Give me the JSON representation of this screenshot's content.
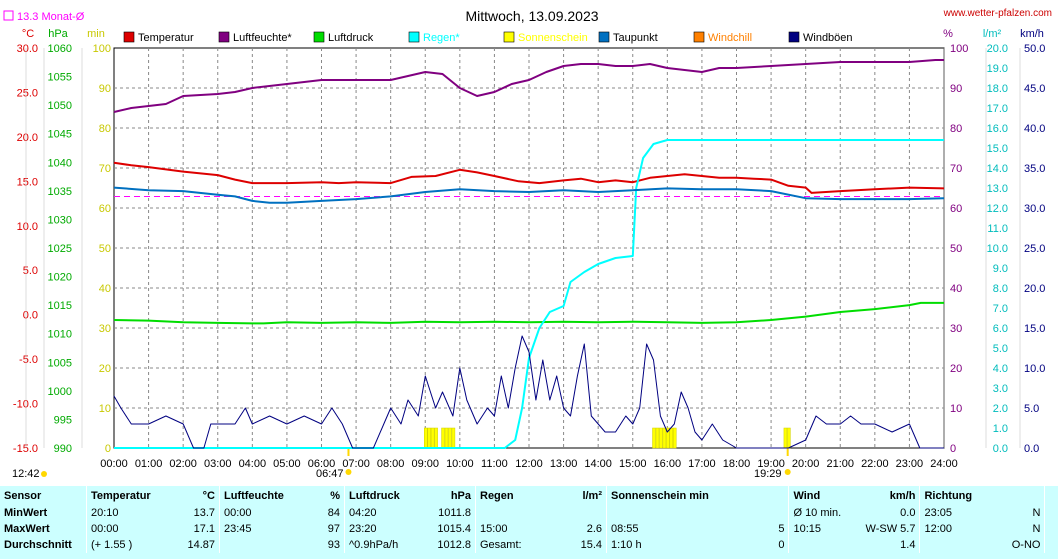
{
  "header": {
    "title": "Mittwoch, 13.09.2023",
    "site": "www.wetter-pfalzen.com",
    "monthly_avg_label": "13.3 Monat-Ø"
  },
  "units": {
    "left": [
      "°C",
      "hPa",
      "min"
    ],
    "right": [
      "%",
      "l/m²",
      "km/h"
    ]
  },
  "legend": [
    {
      "label": "Temperatur",
      "color": "#dd0000"
    },
    {
      "label": "Luftfeuchte*",
      "color": "#800080"
    },
    {
      "label": "Luftdruck",
      "color": "#00dd00"
    },
    {
      "label": "Regen*",
      "color": "#00ffff"
    },
    {
      "label": "Sonnenschein",
      "color": "#ffff00"
    },
    {
      "label": "Taupunkt",
      "color": "#0070c0"
    },
    {
      "label": "Windchill",
      "color": "#ff8000"
    },
    {
      "label": "Windböen",
      "color": "#000080"
    }
  ],
  "axes": {
    "temp_ticks": [
      "30.0",
      "25.0",
      "20.0",
      "15.0",
      "10.0",
      "5.0",
      "0.0",
      "-5.0",
      "-10.0",
      "-15.0"
    ],
    "pressure_ticks": [
      "1060",
      "1055",
      "1050",
      "1045",
      "1040",
      "1035",
      "1030",
      "1025",
      "1020",
      "1015",
      "1010",
      "1005",
      "1000",
      "995",
      "990"
    ],
    "minutes_ticks": [
      "100",
      "90",
      "80",
      "70",
      "60",
      "50",
      "40",
      "30",
      "20",
      "10",
      "0"
    ],
    "humidity_ticks": [
      "100",
      "90",
      "80",
      "70",
      "60",
      "50",
      "40",
      "30",
      "20",
      "10",
      "0"
    ],
    "rain_ticks": [
      "20.0",
      "19.0",
      "18.0",
      "17.0",
      "16.0",
      "15.0",
      "14.0",
      "13.0",
      "12.0",
      "11.0",
      "10.0",
      "9.0",
      "8.0",
      "7.0",
      "6.0",
      "5.0",
      "4.0",
      "3.0",
      "2.0",
      "1.0",
      "0.0"
    ],
    "wind_ticks": [
      "50.0",
      "45.0",
      "40.0",
      "35.0",
      "30.0",
      "25.0",
      "20.0",
      "15.0",
      "10.0",
      "5.0",
      "0.0"
    ],
    "x_ticks": [
      "00:00",
      "01:00",
      "02:00",
      "03:00",
      "04:00",
      "05:00",
      "06:00",
      "07:00",
      "08:00",
      "09:00",
      "10:00",
      "11:00",
      "12:00",
      "13:00",
      "14:00",
      "15:00",
      "16:00",
      "17:00",
      "18:00",
      "19:00",
      "20:00",
      "21:00",
      "22:00",
      "23:00",
      "24:00"
    ]
  },
  "sun_times": {
    "moonrise": "12:42",
    "sunrise": "06:47",
    "sunset": "19:29"
  },
  "chart_data": {
    "type": "line",
    "title": "Mittwoch, 13.09.2023",
    "x_unit": "hour of day",
    "xlim": [
      0,
      24
    ],
    "monthly_avg_temp": 13.3,
    "series": [
      {
        "name": "Temperatur",
        "unit": "°C",
        "axis": "temp",
        "ylim": [
          -15,
          30
        ],
        "color": "#dd0000",
        "points": [
          [
            0,
            17.1
          ],
          [
            0.5,
            16.8
          ],
          [
            1,
            16.6
          ],
          [
            2,
            16.1
          ],
          [
            3,
            15.7
          ],
          [
            3.5,
            15.2
          ],
          [
            4,
            14.8
          ],
          [
            5,
            14.8
          ],
          [
            6,
            14.9
          ],
          [
            6.5,
            14.8
          ],
          [
            7,
            14.9
          ],
          [
            8,
            14.8
          ],
          [
            8.6,
            15.5
          ],
          [
            9.3,
            15.6
          ],
          [
            10,
            16.3
          ],
          [
            10.5,
            16.0
          ],
          [
            11,
            15.6
          ],
          [
            11.7,
            15.0
          ],
          [
            12.3,
            14.8
          ],
          [
            13,
            15.1
          ],
          [
            13.5,
            15.3
          ],
          [
            14,
            14.9
          ],
          [
            14.5,
            15.1
          ],
          [
            15,
            14.9
          ],
          [
            15.5,
            15.4
          ],
          [
            16,
            15.6
          ],
          [
            16.5,
            15.8
          ],
          [
            17,
            15.6
          ],
          [
            17.5,
            15.4
          ],
          [
            18,
            15.4
          ],
          [
            18.5,
            15.3
          ],
          [
            19,
            15.2
          ],
          [
            19.5,
            14.5
          ],
          [
            20,
            14.3
          ],
          [
            20.17,
            13.7
          ],
          [
            21,
            13.9
          ],
          [
            22,
            14.1
          ],
          [
            23,
            14.3
          ],
          [
            24,
            14.2
          ]
        ]
      },
      {
        "name": "Luftfeuchte*",
        "unit": "%",
        "axis": "hum",
        "ylim": [
          0,
          100
        ],
        "color": "#800080",
        "points": [
          [
            0,
            84
          ],
          [
            0.5,
            85
          ],
          [
            1,
            85.5
          ],
          [
            1.5,
            86
          ],
          [
            2,
            88
          ],
          [
            3,
            88.5
          ],
          [
            3.5,
            89
          ],
          [
            4,
            90
          ],
          [
            5,
            91
          ],
          [
            6,
            92
          ],
          [
            7,
            92
          ],
          [
            8,
            92
          ],
          [
            8.5,
            93
          ],
          [
            9,
            94
          ],
          [
            9.5,
            93.5
          ],
          [
            10,
            90
          ],
          [
            10.5,
            88
          ],
          [
            11,
            89
          ],
          [
            11.5,
            91
          ],
          [
            12,
            92
          ],
          [
            12.5,
            94
          ],
          [
            13,
            95.5
          ],
          [
            13.5,
            96
          ],
          [
            14,
            96
          ],
          [
            14.5,
            95.5
          ],
          [
            15,
            95.5
          ],
          [
            15.5,
            96
          ],
          [
            16,
            95
          ],
          [
            16.5,
            94.5
          ],
          [
            17,
            94
          ],
          [
            17.5,
            95
          ],
          [
            18,
            95
          ],
          [
            19,
            95.5
          ],
          [
            20,
            96
          ],
          [
            21,
            96.5
          ],
          [
            22,
            96.5
          ],
          [
            23,
            96.5
          ],
          [
            23.75,
            97
          ],
          [
            24,
            97
          ]
        ]
      },
      {
        "name": "Luftdruck",
        "unit": "hPa",
        "axis": "pressure",
        "ylim": [
          990,
          1060
        ],
        "color": "#00dd00",
        "points": [
          [
            0,
            1012.4
          ],
          [
            1,
            1012.3
          ],
          [
            2,
            1012.0
          ],
          [
            3,
            1011.9
          ],
          [
            4,
            1011.8
          ],
          [
            4.33,
            1011.8
          ],
          [
            5,
            1012.0
          ],
          [
            6,
            1011.9
          ],
          [
            7,
            1012.0
          ],
          [
            8,
            1011.9
          ],
          [
            9,
            1012.1
          ],
          [
            10,
            1012.0
          ],
          [
            11,
            1012.1
          ],
          [
            12,
            1012.0
          ],
          [
            13,
            1012.1
          ],
          [
            14,
            1012.0
          ],
          [
            15,
            1012.1
          ],
          [
            16,
            1012.0
          ],
          [
            17,
            1011.9
          ],
          [
            18,
            1012.0
          ],
          [
            19,
            1012.4
          ],
          [
            20,
            1013.0
          ],
          [
            21,
            1013.8
          ],
          [
            22,
            1014.3
          ],
          [
            23,
            1015.0
          ],
          [
            23.33,
            1015.4
          ],
          [
            24,
            1015.4
          ]
        ]
      },
      {
        "name": "Regen*",
        "unit": "l/m²",
        "axis": "rain",
        "ylim": [
          0,
          20
        ],
        "color": "#00ffff",
        "points": [
          [
            0,
            0
          ],
          [
            11.3,
            0
          ],
          [
            11.6,
            0.4
          ],
          [
            11.8,
            2.0
          ],
          [
            12.0,
            4.5
          ],
          [
            12.3,
            6.0
          ],
          [
            12.6,
            6.8
          ],
          [
            13.0,
            7.1
          ],
          [
            13.2,
            8.3
          ],
          [
            13.6,
            8.8
          ],
          [
            14.0,
            9.2
          ],
          [
            14.5,
            9.5
          ],
          [
            15.0,
            9.6
          ],
          [
            15.1,
            13.0
          ],
          [
            15.3,
            14.5
          ],
          [
            15.6,
            15.2
          ],
          [
            16.0,
            15.4
          ],
          [
            17,
            15.4
          ],
          [
            20,
            15.4
          ],
          [
            24,
            15.4
          ]
        ]
      },
      {
        "name": "Taupunkt",
        "unit": "°C",
        "axis": "temp",
        "ylim": [
          -15,
          30
        ],
        "color": "#0070c0",
        "points": [
          [
            0,
            14.3
          ],
          [
            1,
            14.0
          ],
          [
            2,
            13.9
          ],
          [
            3,
            13.5
          ],
          [
            3.5,
            13.3
          ],
          [
            4,
            12.8
          ],
          [
            4.5,
            12.6
          ],
          [
            5,
            12.6
          ],
          [
            6,
            12.8
          ],
          [
            7,
            13.0
          ],
          [
            8,
            13.3
          ],
          [
            9,
            13.8
          ],
          [
            10,
            14.1
          ],
          [
            11,
            13.9
          ],
          [
            12,
            13.8
          ],
          [
            13,
            14.0
          ],
          [
            14,
            13.8
          ],
          [
            15,
            14.0
          ],
          [
            16,
            14.2
          ],
          [
            17,
            14.1
          ],
          [
            18,
            14.1
          ],
          [
            19,
            13.9
          ],
          [
            20,
            13.1
          ],
          [
            21,
            13.0
          ],
          [
            22,
            13.0
          ],
          [
            23,
            13.0
          ],
          [
            24,
            13.1
          ]
        ]
      },
      {
        "name": "Windböen",
        "unit": "km/h",
        "axis": "wind",
        "ylim": [
          0,
          50
        ],
        "color": "#000080",
        "points": [
          [
            0,
            6.5
          ],
          [
            0.2,
            5
          ],
          [
            0.5,
            3
          ],
          [
            1,
            3
          ],
          [
            1.5,
            4
          ],
          [
            2,
            3
          ],
          [
            2.3,
            0
          ],
          [
            2.6,
            0
          ],
          [
            2.8,
            3
          ],
          [
            3.5,
            3
          ],
          [
            3.8,
            5
          ],
          [
            4,
            3
          ],
          [
            4.5,
            4
          ],
          [
            5,
            3
          ],
          [
            5.5,
            4
          ],
          [
            6,
            3
          ],
          [
            6.3,
            5
          ],
          [
            6.6,
            3
          ],
          [
            6.9,
            0
          ],
          [
            7.5,
            0
          ],
          [
            7.8,
            3
          ],
          [
            8.0,
            5
          ],
          [
            8.3,
            3
          ],
          [
            8.5,
            6
          ],
          [
            8.8,
            4
          ],
          [
            9.0,
            9
          ],
          [
            9.3,
            5
          ],
          [
            9.5,
            7
          ],
          [
            9.8,
            4
          ],
          [
            10.0,
            10
          ],
          [
            10.2,
            6
          ],
          [
            10.5,
            3
          ],
          [
            10.8,
            5
          ],
          [
            11.0,
            4
          ],
          [
            11.2,
            9
          ],
          [
            11.4,
            5
          ],
          [
            11.6,
            10
          ],
          [
            11.8,
            14
          ],
          [
            12.0,
            12
          ],
          [
            12.2,
            6
          ],
          [
            12.4,
            11
          ],
          [
            12.6,
            6
          ],
          [
            12.8,
            9
          ],
          [
            13.0,
            5
          ],
          [
            13.2,
            4
          ],
          [
            13.4,
            9
          ],
          [
            13.6,
            13
          ],
          [
            13.8,
            4
          ],
          [
            14.0,
            3
          ],
          [
            14.2,
            2
          ],
          [
            14.5,
            2
          ],
          [
            14.8,
            4
          ],
          [
            15.0,
            3
          ],
          [
            15.2,
            5
          ],
          [
            15.4,
            13
          ],
          [
            15.6,
            11
          ],
          [
            15.8,
            4
          ],
          [
            16.0,
            2
          ],
          [
            16.2,
            3
          ],
          [
            16.4,
            7
          ],
          [
            16.6,
            5
          ],
          [
            16.8,
            2
          ],
          [
            17.0,
            1
          ],
          [
            17.3,
            3
          ],
          [
            17.6,
            1
          ],
          [
            18.0,
            0
          ],
          [
            18.5,
            0
          ],
          [
            19.0,
            0
          ],
          [
            19.5,
            0
          ],
          [
            20.0,
            1
          ],
          [
            20.3,
            4
          ],
          [
            20.6,
            3
          ],
          [
            21.0,
            3
          ],
          [
            21.3,
            4
          ],
          [
            21.6,
            3
          ],
          [
            22.0,
            3
          ],
          [
            22.5,
            2
          ],
          [
            23.0,
            3
          ],
          [
            23.3,
            0
          ],
          [
            24,
            0
          ]
        ]
      }
    ],
    "sunshine_periods": [
      [
        9.0,
        9.3
      ],
      [
        9.5,
        9.8
      ],
      [
        15.6,
        16.2
      ],
      [
        19.4,
        19.5
      ]
    ],
    "stats": {
      "columns": [
        "Sensor",
        "Temperatur",
        "Luftfeuchte",
        "Luftdruck",
        "Regen",
        "Sonnenschein",
        "Wind",
        "Richtung"
      ]
    }
  },
  "table": {
    "headers": {
      "sensor": "Sensor",
      "temp": "Temperatur",
      "temp_unit": "°C",
      "hum": "Luftfeuchte",
      "hum_unit": "%",
      "press": "Luftdruck",
      "press_unit": "hPa",
      "rain": "Regen",
      "rain_unit": "l/m²",
      "sun": "Sonnenschein min",
      "wind": "Wind",
      "wind_unit": "km/h",
      "dir": "Richtung"
    },
    "rows": [
      {
        "label": "MinWert",
        "temp_time": "20:10",
        "temp_val": "13.7",
        "hum_time": "00:00",
        "hum_val": "84",
        "press_time": "04:20",
        "press_val": "1011.8",
        "rain_time": "",
        "rain_val": "",
        "sun_time": "",
        "sun_val": "",
        "wind_time": "Ø 10 min.",
        "wind_val": "0.0",
        "dir_time": "23:05",
        "dir_val": "N"
      },
      {
        "label": "MaxWert",
        "temp_time": "00:00",
        "temp_val": "17.1",
        "hum_time": "23:45",
        "hum_val": "97",
        "press_time": "23:20",
        "press_val": "1015.4",
        "rain_time": "15:00",
        "rain_val": "2.6",
        "sun_time": "08:55",
        "sun_val": "5",
        "wind_time": "10:15",
        "wind_val": "W-SW 5.7",
        "dir_time": "12:00",
        "dir_val": "N"
      },
      {
        "label": "Durchschnitt",
        "temp_time": "(+ 1.55 )",
        "temp_val": "14.87",
        "hum_time": "",
        "hum_val": "93",
        "press_time": "^0.9hPa/h",
        "press_val": "1012.8",
        "rain_time": "Gesamt:",
        "rain_val": "15.4",
        "sun_time": "1:10 h",
        "sun_val": "0",
        "wind_time": "",
        "wind_val": "1.4",
        "dir_time": "",
        "dir_val": "O-NO"
      }
    ]
  }
}
